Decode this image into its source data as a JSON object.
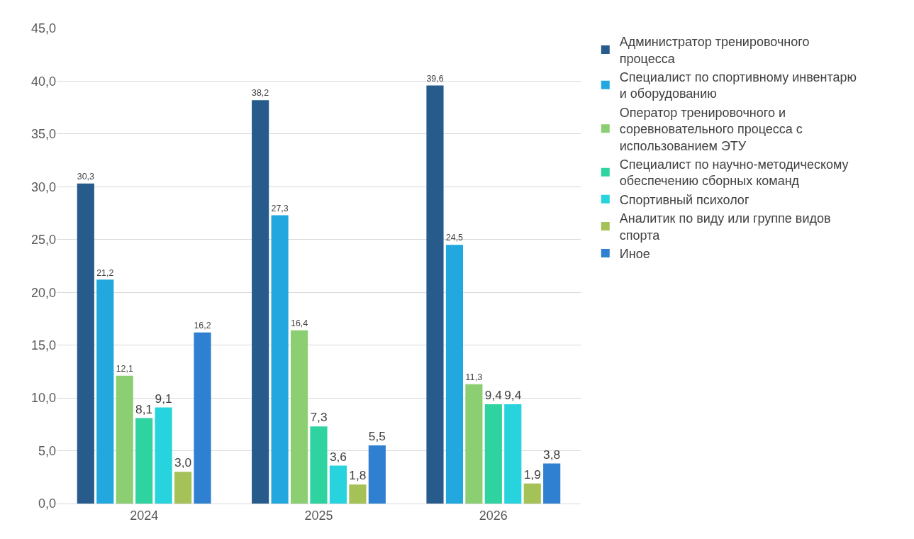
{
  "chart_data": {
    "type": "bar",
    "categories": [
      "2024",
      "2025",
      "2026"
    ],
    "series": [
      {
        "name": "Администратор тренировочного процесса",
        "color": "#265b8b",
        "values": [
          30.3,
          38.2,
          39.6
        ],
        "value_labels": [
          "30,3",
          "38,2",
          "39,6"
        ]
      },
      {
        "name": "Специалист по спортивному инвентарю и оборудованию",
        "color": "#22a7df",
        "values": [
          21.2,
          27.3,
          24.5
        ],
        "value_labels": [
          "21,2",
          "27,3",
          "24,5"
        ]
      },
      {
        "name": "Оператор тренировочного и соревновательного процесса с использованием ЭТУ",
        "color": "#8ccf72",
        "values": [
          12.1,
          16.4,
          11.3
        ],
        "value_labels": [
          "12,1",
          "16,4",
          "11,3"
        ]
      },
      {
        "name": "Специалист по научно-методическому обеспечению сборных команд",
        "color": "#2fd3a0",
        "values": [
          8.1,
          7.3,
          9.4
        ],
        "value_labels": [
          "8,1",
          "7,3",
          "9,4"
        ]
      },
      {
        "name": "Спортивный психолог",
        "color": "#27d3dd",
        "values": [
          9.1,
          3.6,
          9.4
        ],
        "value_labels": [
          "9,1",
          "3,6",
          "9,4"
        ]
      },
      {
        "name": "Аналитик по виду или группе видов спорта",
        "color": "#a4c257",
        "values": [
          3.0,
          1.8,
          1.9
        ],
        "value_labels": [
          "3,0",
          "1,8",
          "1,9"
        ]
      },
      {
        "name": "Иное",
        "color": "#2f80d0",
        "values": [
          16.2,
          5.5,
          3.8
        ],
        "value_labels": [
          "16,2",
          "5,5",
          "3,8"
        ]
      }
    ],
    "ylim": [
      0,
      45
    ],
    "yticks": [
      {
        "value": 0,
        "label": "0,0"
      },
      {
        "value": 5,
        "label": "5,0"
      },
      {
        "value": 10,
        "label": "10,0"
      },
      {
        "value": 15,
        "label": "15,0"
      },
      {
        "value": 20,
        "label": "20,0"
      },
      {
        "value": 25,
        "label": "25,0"
      },
      {
        "value": 30,
        "label": "30,0"
      },
      {
        "value": 35,
        "label": "35,0"
      },
      {
        "value": 40,
        "label": "40,0"
      },
      {
        "value": 45,
        "label": "45,0"
      }
    ],
    "grid": "y",
    "legend": "right"
  }
}
